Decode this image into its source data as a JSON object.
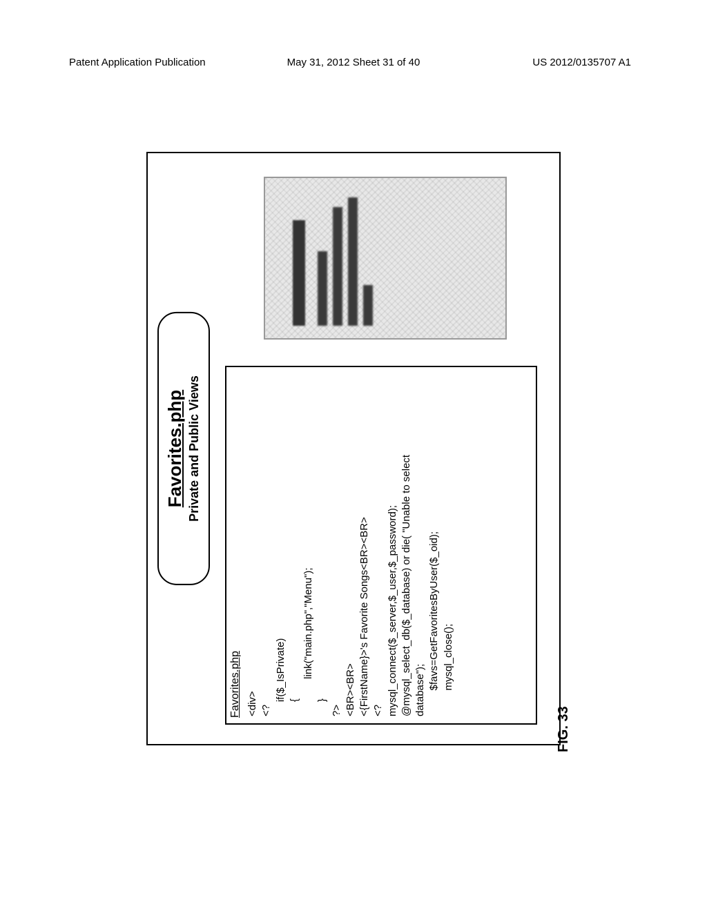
{
  "header": {
    "left": "Patent Application Publication",
    "center": "May 31, 2012  Sheet 31 of 40",
    "right": "US 2012/0135707 A1"
  },
  "figure": {
    "label": "FIG. 33",
    "title": "Favorites.php",
    "subtitle": "Private and Public Views",
    "codebox_label": "Favorites.php",
    "code_lines": [
      "<div>",
      "<?",
      "     if($_IsPrivate)",
      "     {",
      "             link(\"main.php\",\"Menu\");",
      "     }",
      "?>",
      "<BR><BR>",
      "<{FirstName}>'s Favorite Songs<BR><BR>",
      "<?",
      "mysql_connect($_server,$_user,$_password);",
      "@mysql_select_db($_database) or die( \"Unable to select",
      "database\");",
      "         $favs=GetFavoritesByUser($_oid);",
      "         mysql_close();"
    ]
  },
  "colors": {
    "background": "#ffffff",
    "text": "#000000",
    "border": "#000000",
    "mockup_bg": "#e8e8e8",
    "mockup_bar": "#333333"
  },
  "typography": {
    "header_fontsize": 15,
    "title_fontsize": 26,
    "subtitle_fontsize": 18,
    "code_fontsize": 15,
    "fig_label_fontsize": 20
  }
}
